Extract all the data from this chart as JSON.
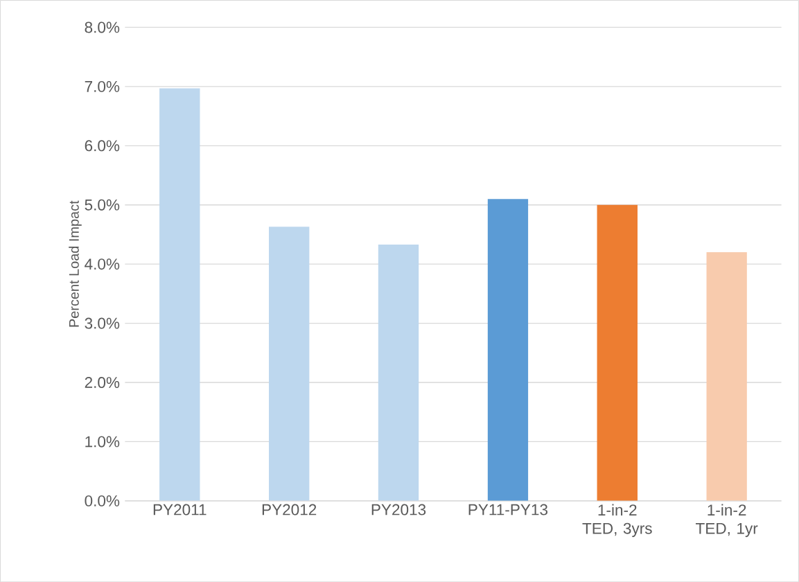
{
  "chart_data": {
    "type": "bar",
    "ylabel": "Percent Load Impact",
    "categories": [
      "PY2011",
      "PY2012",
      "PY2013",
      "PY11-PY13",
      "1-in-2 TED, 3yrs",
      "1-in-2 TED, 1yr"
    ],
    "values": [
      6.97,
      4.63,
      4.33,
      5.1,
      5.0,
      4.2
    ],
    "colors": [
      "#bdd7ee",
      "#bdd7ee",
      "#bdd7ee",
      "#5b9bd5",
      "#ed7d31",
      "#f8cbad"
    ],
    "ylim": [
      0,
      8
    ],
    "yticks": [
      {
        "value": 0,
        "label": "0.0%"
      },
      {
        "value": 1,
        "label": "1.0%"
      },
      {
        "value": 2,
        "label": "2.0%"
      },
      {
        "value": 3,
        "label": "3.0%"
      },
      {
        "value": 4,
        "label": "4.0%"
      },
      {
        "value": 5,
        "label": "5.0%"
      },
      {
        "value": 6,
        "label": "6.0%"
      },
      {
        "value": 7,
        "label": "7.0%"
      },
      {
        "value": 8,
        "label": "8.0%"
      }
    ],
    "grid": "y"
  }
}
